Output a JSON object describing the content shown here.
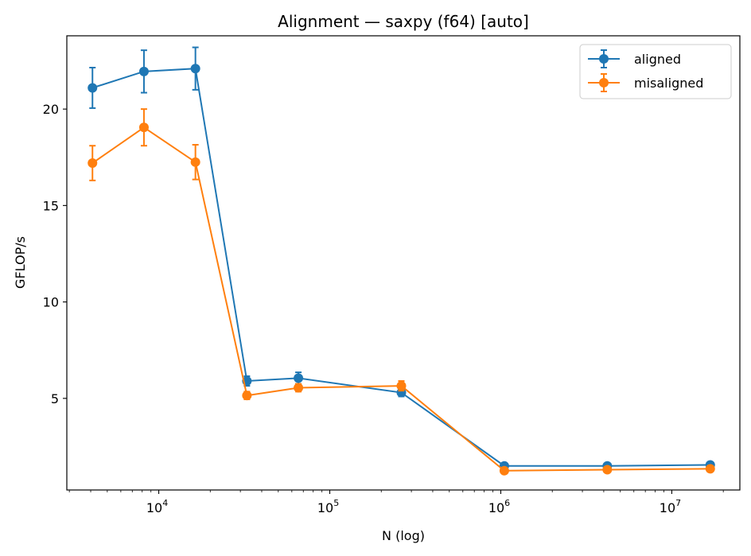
{
  "chart_data": {
    "type": "line",
    "title": "Alignment — saxpy (f64) [auto]",
    "xlabel": "N (log)",
    "ylabel": "GFLOP/s",
    "xscale": "log",
    "xlim": [
      2900,
      25000000
    ],
    "ylim": [
      0.25,
      23.8
    ],
    "grid": false,
    "legend_position": "top-right",
    "x": [
      4096,
      8192,
      16384,
      32768,
      65536,
      262144,
      1048576,
      4194304,
      16777216
    ],
    "x_ticks": [
      {
        "base": "10",
        "exp": "4",
        "value": 10000
      },
      {
        "base": "10",
        "exp": "5",
        "value": 100000
      },
      {
        "base": "10",
        "exp": "6",
        "value": 1000000
      },
      {
        "base": "10",
        "exp": "7",
        "value": 10000000
      }
    ],
    "y_ticks": [
      {
        "label": "5",
        "value": 5
      },
      {
        "label": "10",
        "value": 10
      },
      {
        "label": "15",
        "value": 15
      },
      {
        "label": "20",
        "value": 20
      }
    ],
    "series": [
      {
        "name": "aligned",
        "color": "#1f77b4",
        "values": [
          21.1,
          21.95,
          22.1,
          5.9,
          6.05,
          5.3,
          1.5,
          1.5,
          1.55
        ],
        "errors": [
          1.05,
          1.1,
          1.1,
          0.25,
          0.3,
          0.2,
          0.05,
          0.05,
          0.05
        ]
      },
      {
        "name": "misaligned",
        "color": "#ff7f0e",
        "values": [
          17.2,
          19.05,
          17.25,
          5.15,
          5.55,
          5.65,
          1.25,
          1.3,
          1.35
        ],
        "errors": [
          0.9,
          0.95,
          0.9,
          0.2,
          0.2,
          0.25,
          0.05,
          0.05,
          0.05
        ]
      }
    ]
  }
}
